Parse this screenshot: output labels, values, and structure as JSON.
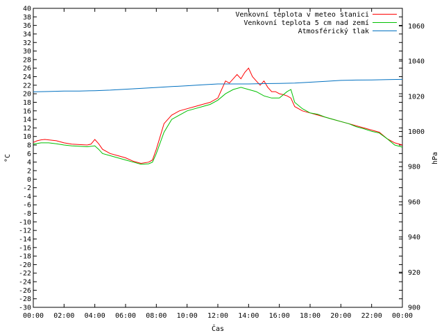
{
  "chart_data": {
    "type": "line",
    "title": "",
    "xlabel": "Čas",
    "ylabel": "°C",
    "y2label": "hPa",
    "x_ticks": [
      "00:00",
      "02:00",
      "04:00",
      "06:00",
      "08:00",
      "10:00",
      "12:00",
      "14:00",
      "16:00",
      "18:00",
      "20:00",
      "22:00",
      "00:00"
    ],
    "ylim": [
      -30,
      40
    ],
    "y_ticks": [
      40,
      38,
      36,
      34,
      32,
      30,
      28,
      26,
      24,
      22,
      20,
      18,
      16,
      14,
      12,
      10,
      8,
      6,
      4,
      2,
      0,
      -2,
      -4,
      -6,
      -8,
      -10,
      -12,
      -14,
      -16,
      -18,
      -20,
      -22,
      -24,
      -26,
      -28,
      -30
    ],
    "y2lim": [
      900,
      1070
    ],
    "y2_ticks": [
      1060,
      1040,
      1020,
      1000,
      980,
      960,
      940,
      920,
      900
    ],
    "legend_position": "top-right",
    "grid": false,
    "series": [
      {
        "name": "Venkovní teplota v meteo stanici",
        "axis": "y1",
        "color": "#ff0000",
        "points": [
          [
            0,
            8.6
          ],
          [
            0.25,
            9
          ],
          [
            0.5,
            9.2
          ],
          [
            0.75,
            9.3
          ],
          [
            1,
            9.2
          ],
          [
            1.5,
            9
          ],
          [
            2,
            8.5
          ],
          [
            2.5,
            8.2
          ],
          [
            3,
            8.1
          ],
          [
            3.5,
            8
          ],
          [
            3.75,
            8.2
          ],
          [
            4,
            9.3
          ],
          [
            4.25,
            8.3
          ],
          [
            4.5,
            7
          ],
          [
            5,
            6
          ],
          [
            5.5,
            5.5
          ],
          [
            6,
            5
          ],
          [
            6.5,
            4.2
          ],
          [
            7,
            3.7
          ],
          [
            7.5,
            4
          ],
          [
            7.75,
            4.5
          ],
          [
            8,
            7
          ],
          [
            8.25,
            10
          ],
          [
            8.5,
            13
          ],
          [
            9,
            15
          ],
          [
            9.5,
            16
          ],
          [
            10,
            16.5
          ],
          [
            10.5,
            17
          ],
          [
            11,
            17.5
          ],
          [
            11.5,
            18
          ],
          [
            12,
            19
          ],
          [
            12.25,
            21
          ],
          [
            12.5,
            23
          ],
          [
            12.75,
            22.5
          ],
          [
            13,
            23.5
          ],
          [
            13.25,
            24.5
          ],
          [
            13.5,
            23.5
          ],
          [
            13.75,
            25
          ],
          [
            14,
            26
          ],
          [
            14.25,
            24
          ],
          [
            14.5,
            23
          ],
          [
            14.75,
            22
          ],
          [
            15,
            23
          ],
          [
            15.25,
            21.5
          ],
          [
            15.5,
            20.5
          ],
          [
            15.75,
            20.5
          ],
          [
            16,
            20
          ],
          [
            16.25,
            19.8
          ],
          [
            16.5,
            19.5
          ],
          [
            16.75,
            19
          ],
          [
            17,
            17
          ],
          [
            17.5,
            16
          ],
          [
            18,
            15.5
          ],
          [
            18.5,
            15
          ],
          [
            19,
            14.5
          ],
          [
            19.5,
            14
          ],
          [
            20,
            13.5
          ],
          [
            20.5,
            13
          ],
          [
            21,
            12.5
          ],
          [
            21.5,
            12
          ],
          [
            22,
            11.5
          ],
          [
            22.5,
            11
          ],
          [
            23,
            9.5
          ],
          [
            23.5,
            8.5
          ],
          [
            24,
            8
          ]
        ]
      },
      {
        "name": "Venkovní teplota 5 cm nad zemí",
        "axis": "y1",
        "color": "#00c000",
        "points": [
          [
            0,
            8.2
          ],
          [
            0.5,
            8.5
          ],
          [
            1,
            8.5
          ],
          [
            1.5,
            8.3
          ],
          [
            2,
            8
          ],
          [
            2.5,
            7.8
          ],
          [
            3,
            7.7
          ],
          [
            3.5,
            7.6
          ],
          [
            4,
            7.8
          ],
          [
            4.25,
            7
          ],
          [
            4.5,
            6
          ],
          [
            5,
            5.5
          ],
          [
            5.5,
            5
          ],
          [
            6,
            4.5
          ],
          [
            6.5,
            4
          ],
          [
            7,
            3.5
          ],
          [
            7.5,
            3.6
          ],
          [
            7.75,
            4
          ],
          [
            8,
            6
          ],
          [
            8.5,
            11
          ],
          [
            9,
            14
          ],
          [
            9.5,
            15
          ],
          [
            10,
            16
          ],
          [
            10.5,
            16.5
          ],
          [
            11,
            17
          ],
          [
            11.5,
            17.5
          ],
          [
            12,
            18.5
          ],
          [
            12.5,
            20
          ],
          [
            13,
            21
          ],
          [
            13.5,
            21.5
          ],
          [
            14,
            21
          ],
          [
            14.5,
            20.5
          ],
          [
            15,
            19.5
          ],
          [
            15.5,
            19
          ],
          [
            16,
            19
          ],
          [
            16.5,
            20.5
          ],
          [
            16.75,
            21
          ],
          [
            17,
            18
          ],
          [
            17.5,
            16.5
          ],
          [
            18,
            15.5
          ],
          [
            18.5,
            15.2
          ],
          [
            19,
            14.5
          ],
          [
            19.5,
            14
          ],
          [
            20,
            13.5
          ],
          [
            20.5,
            13
          ],
          [
            21,
            12.3
          ],
          [
            21.5,
            11.8
          ],
          [
            22,
            11.2
          ],
          [
            22.5,
            10.8
          ],
          [
            23,
            9.5
          ],
          [
            23.5,
            8
          ],
          [
            24,
            7.5
          ]
        ]
      },
      {
        "name": "Atmosférický tlak",
        "axis": "y2",
        "color": "#0070c0",
        "points": [
          [
            0,
            1022.5
          ],
          [
            1,
            1022.7
          ],
          [
            2,
            1023
          ],
          [
            3,
            1023
          ],
          [
            4,
            1023.2
          ],
          [
            5,
            1023.5
          ],
          [
            6,
            1024
          ],
          [
            7,
            1024.5
          ],
          [
            8,
            1025
          ],
          [
            9,
            1025.5
          ],
          [
            10,
            1026
          ],
          [
            11,
            1026.5
          ],
          [
            12,
            1027
          ],
          [
            13,
            1027
          ],
          [
            14,
            1027
          ],
          [
            15,
            1027.2
          ],
          [
            16,
            1027.3
          ],
          [
            17,
            1027.5
          ],
          [
            18,
            1028
          ],
          [
            19,
            1028.5
          ],
          [
            20,
            1029
          ],
          [
            21,
            1029.2
          ],
          [
            22,
            1029.3
          ],
          [
            23,
            1029.5
          ],
          [
            24,
            1029.6
          ]
        ]
      }
    ]
  }
}
